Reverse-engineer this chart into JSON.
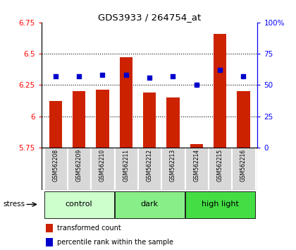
{
  "title": "GDS3933 / 264754_at",
  "samples": [
    "GSM562208",
    "GSM562209",
    "GSM562210",
    "GSM562211",
    "GSM562212",
    "GSM562213",
    "GSM562214",
    "GSM562215",
    "GSM562216"
  ],
  "red_values": [
    6.12,
    6.2,
    6.21,
    6.47,
    6.19,
    6.15,
    5.78,
    6.66,
    6.2
  ],
  "blue_values": [
    57,
    57,
    58,
    58,
    56,
    57,
    50,
    62,
    57
  ],
  "baseline": 5.75,
  "ylim_left": [
    5.75,
    6.75
  ],
  "ylim_right": [
    0,
    100
  ],
  "yticks_left": [
    5.75,
    6.0,
    6.25,
    6.5,
    6.75
  ],
  "yticks_right": [
    0,
    25,
    50,
    75,
    100
  ],
  "ytick_labels_left": [
    "5.75",
    "6",
    "6.25",
    "6.5",
    "6.75"
  ],
  "ytick_labels_right": [
    "0",
    "25",
    "50",
    "75",
    "100%"
  ],
  "groups": [
    {
      "label": "control",
      "samples": [
        0,
        1,
        2
      ],
      "color": "#ccffcc"
    },
    {
      "label": "dark",
      "samples": [
        3,
        4,
        5
      ],
      "color": "#88ee88"
    },
    {
      "label": "high light",
      "samples": [
        6,
        7,
        8
      ],
      "color": "#44dd44"
    }
  ],
  "bar_color": "#cc2200",
  "marker_color": "#0000cc",
  "bar_width": 0.55,
  "grid_lines": [
    6.0,
    6.25,
    6.5
  ],
  "legend_red": "transformed count",
  "legend_blue": "percentile rank within the sample",
  "stress_label": "stress"
}
